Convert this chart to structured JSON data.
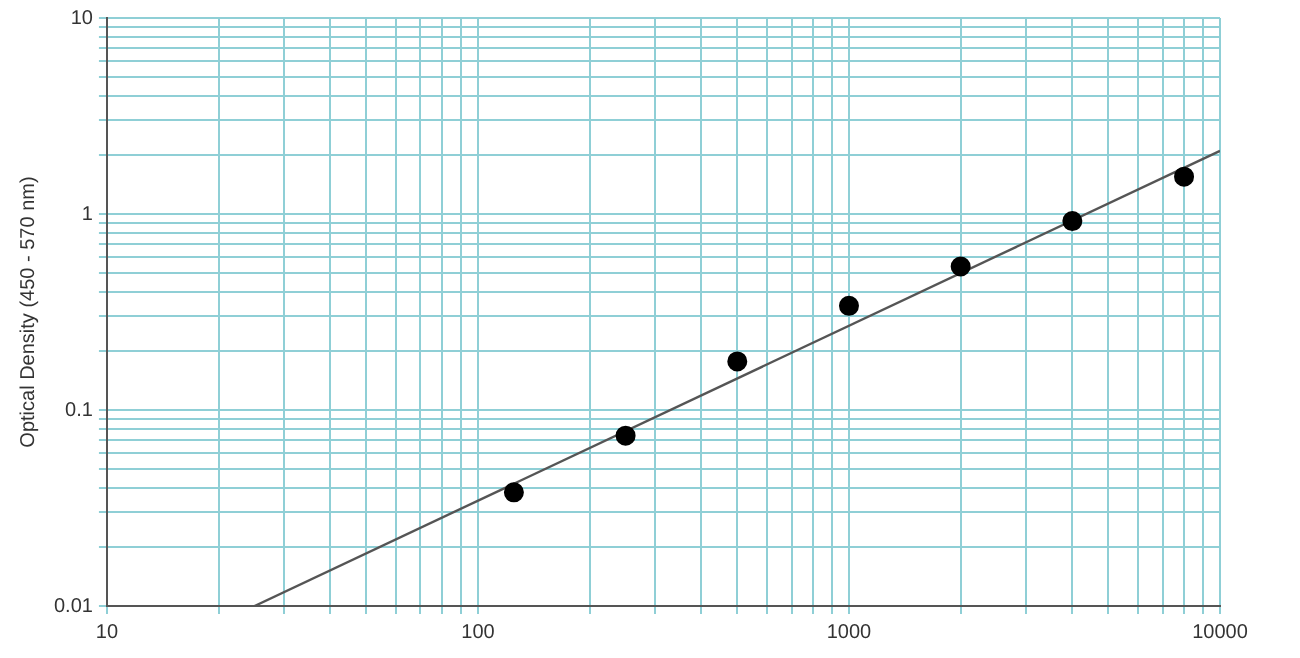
{
  "chart_data": {
    "type": "scatter",
    "ylabel": "Optical Density (450 - 570 nm)",
    "log": "xy",
    "grid": true,
    "marker": "circle",
    "legend": false,
    "xlim": [
      10,
      10000
    ],
    "ylim": [
      0.01,
      10
    ],
    "xticks": [
      10,
      {
        "value": 20,
        "label": null
      },
      {
        "value": 30,
        "label": null
      },
      {
        "value": 40,
        "label": null
      },
      {
        "value": 50,
        "label": null
      },
      {
        "value": 60,
        "label": null
      },
      {
        "value": 70,
        "label": null
      },
      {
        "value": 80,
        "label": null
      },
      {
        "value": 90,
        "label": null
      },
      100,
      {
        "value": 200,
        "label": null
      },
      {
        "value": 300,
        "label": null
      },
      {
        "value": 400,
        "label": null
      },
      {
        "value": 500,
        "label": null
      },
      {
        "value": 600,
        "label": null
      },
      {
        "value": 700,
        "label": null
      },
      {
        "value": 800,
        "label": null
      },
      {
        "value": 900,
        "label": null
      },
      1000,
      {
        "value": 2000,
        "label": null
      },
      {
        "value": 3000,
        "label": null
      },
      {
        "value": 4000,
        "label": null
      },
      {
        "value": 5000,
        "label": null
      },
      {
        "value": 6000,
        "label": null
      },
      {
        "value": 7000,
        "label": null
      },
      {
        "value": 8000,
        "label": null
      },
      {
        "value": 9000,
        "label": null
      },
      10000
    ],
    "yticks": [
      0.01,
      {
        "value": 0.02,
        "label": null
      },
      {
        "value": 0.03,
        "label": null
      },
      {
        "value": 0.04,
        "label": null
      },
      {
        "value": 0.05,
        "label": null
      },
      {
        "value": 0.06,
        "label": null
      },
      {
        "value": 0.07,
        "label": null
      },
      {
        "value": 0.08,
        "label": null
      },
      {
        "value": 0.09,
        "label": null
      },
      0.1,
      {
        "value": 0.2,
        "label": null
      },
      {
        "value": 0.3,
        "label": null
      },
      {
        "value": 0.4,
        "label": null
      },
      {
        "value": 0.5,
        "label": null
      },
      {
        "value": 0.6,
        "label": null
      },
      {
        "value": 0.7,
        "label": null
      },
      {
        "value": 0.8,
        "label": null
      },
      {
        "value": 0.9,
        "label": null
      },
      1,
      {
        "value": 2,
        "label": null
      },
      {
        "value": 3,
        "label": null
      },
      {
        "value": 4,
        "label": null
      },
      {
        "value": 5,
        "label": null
      },
      {
        "value": 6,
        "label": null
      },
      {
        "value": 7,
        "label": null
      },
      {
        "value": 8,
        "label": null
      },
      {
        "value": 9,
        "label": null
      },
      10
    ],
    "series": [
      {
        "color": "#000000",
        "x": [
          125,
          250,
          500,
          1000,
          2000,
          4000,
          8000
        ],
        "values": [
          0.038,
          0.074,
          0.177,
          0.34,
          0.54,
          0.92,
          1.55
        ]
      },
      {
        "type": "line",
        "color": "#555555",
        "marker": "none",
        "x": [
          25,
          10000
        ],
        "values": [
          0.01,
          2.1
        ]
      }
    ]
  }
}
